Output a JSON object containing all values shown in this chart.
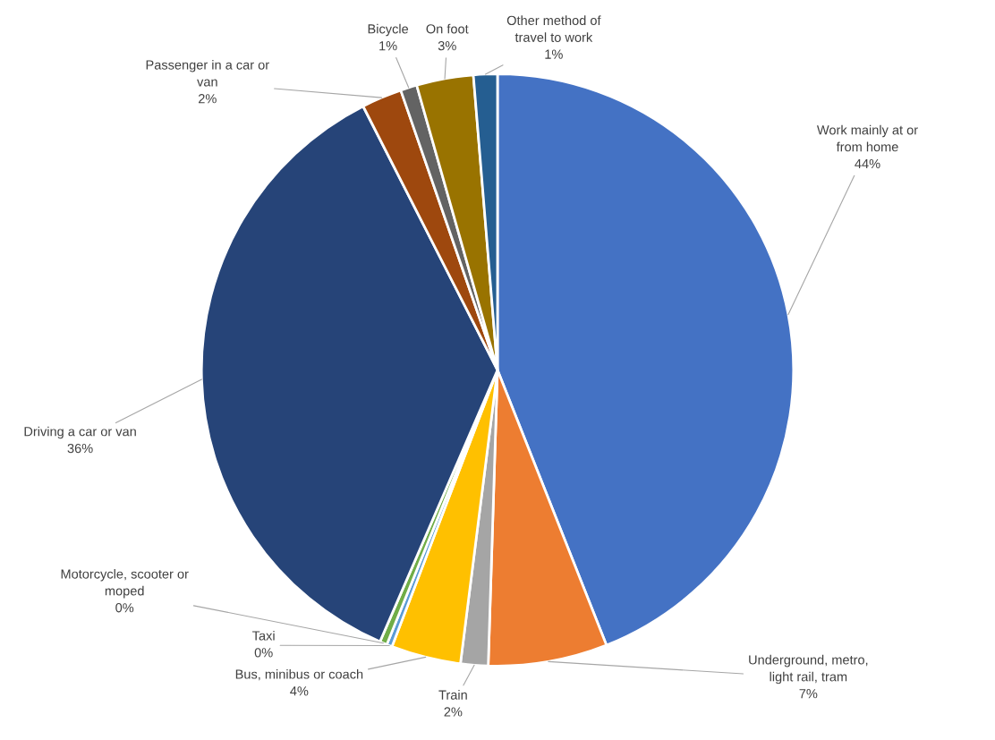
{
  "chart_data": {
    "type": "pie",
    "categories": [
      "Work mainly at or from home",
      "Underground, metro, light rail, tram",
      "Train",
      "Bus, minibus or coach",
      "Taxi",
      "Motorcycle, scooter or moped",
      "Driving a car or van",
      "Passenger in a car or van",
      "Bicycle",
      "On foot",
      "Other method of travel to work"
    ],
    "values": [
      44,
      6.5,
      1.5,
      3.8,
      0.3,
      0.4,
      36,
      2.2,
      0.9,
      3.1,
      1.3
    ],
    "value_labels": [
      "44%",
      "7%",
      "2%",
      "4%",
      "0%",
      "0%",
      "36%",
      "2%",
      "1%",
      "3%",
      "1%"
    ],
    "colors": [
      "#4472c4",
      "#ed7d31",
      "#a5a5a5",
      "#ffc000",
      "#5b9bd5",
      "#70ad47",
      "#264478",
      "#9e480e",
      "#636363",
      "#997300",
      "#255e91"
    ],
    "legend": false
  }
}
